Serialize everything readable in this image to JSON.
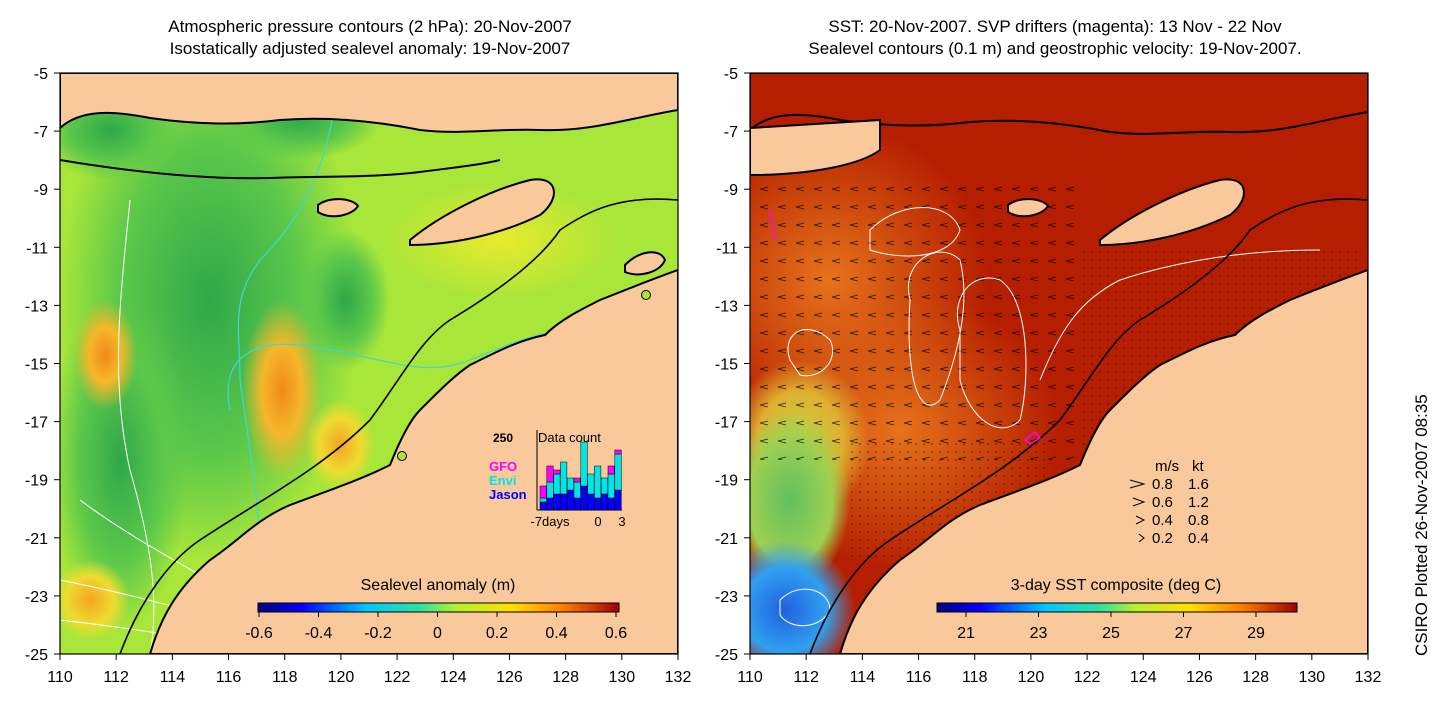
{
  "left_panel": {
    "title_line1": "Atmospheric pressure contours (2 hPa): 20-Nov-2007",
    "title_line2": "Isostatically adjusted sealevel anomaly: 19-Nov-2007",
    "colorbar_title": "Sealevel anomaly (m)",
    "colorbar_ticks": [
      "-0.6",
      "-0.4",
      "-0.2",
      "0",
      "0.2",
      "0.4",
      "0.6"
    ],
    "inset": {
      "max_label": "250",
      "title": "Data count",
      "legend": [
        {
          "name": "GFO",
          "color": "#ff00ff"
        },
        {
          "name": "Envi",
          "color": "#00e5e5"
        },
        {
          "name": "Jason",
          "color": "#0000ff"
        }
      ],
      "x_ticks": [
        "-7days",
        "0",
        "3"
      ],
      "bars": [
        {
          "jason": 0.1,
          "envi": 0.05,
          "gfo": 0.15
        },
        {
          "jason": 0.15,
          "envi": 0.2,
          "gfo": 0.2
        },
        {
          "jason": 0.2,
          "envi": 0.25,
          "gfo": 0.05
        },
        {
          "jason": 0.2,
          "envi": 0.4,
          "gfo": 0.0
        },
        {
          "jason": 0.25,
          "envi": 0.15,
          "gfo": 0.0
        },
        {
          "jason": 0.15,
          "envi": 0.2,
          "gfo": 0.05
        },
        {
          "jason": 0.3,
          "envi": 0.55,
          "gfo": 0.0
        },
        {
          "jason": 0.2,
          "envi": 0.25,
          "gfo": 0.0
        },
        {
          "jason": 0.15,
          "envi": 0.4,
          "gfo": 0.0
        },
        {
          "jason": 0.2,
          "envi": 0.2,
          "gfo": 0.0
        },
        {
          "jason": 0.15,
          "envi": 0.3,
          "gfo": 0.1
        },
        {
          "jason": 0.25,
          "envi": 0.45,
          "gfo": 0.05
        }
      ]
    }
  },
  "right_panel": {
    "title_line1": "SST: 20-Nov-2007. SVP drifters (magenta): 13 Nov - 22 Nov",
    "title_line2": "Sealevel contours (0.1 m) and geostrophic velocity: 19-Nov-2007.",
    "colorbar_title": "3-day SST composite (deg C)",
    "colorbar_ticks": [
      "21",
      "23",
      "25",
      "27",
      "29"
    ],
    "velocity_legend": {
      "header_ms": "m/s",
      "header_kt": "kt",
      "rows": [
        {
          "ms": "0.8",
          "kt": "1.6"
        },
        {
          "ms": "0.6",
          "kt": "1.2"
        },
        {
          "ms": "0.4",
          "kt": "0.8"
        },
        {
          "ms": "0.2",
          "kt": "0.4"
        }
      ]
    }
  },
  "axes": {
    "y_ticks": [
      "-5",
      "-7",
      "-9",
      "-11",
      "-13",
      "-15",
      "-17",
      "-19",
      "-21",
      "-23",
      "-25"
    ],
    "x_ticks": [
      "110",
      "112",
      "114",
      "116",
      "118",
      "120",
      "122",
      "124",
      "126",
      "128",
      "130",
      "132"
    ]
  },
  "credit": "CSIRO Plotted 26-Nov-2007 08:35",
  "colors": {
    "land": "#f9c99b",
    "ocean_left": "#a8e63a",
    "ocean_right": "#b51e00"
  }
}
